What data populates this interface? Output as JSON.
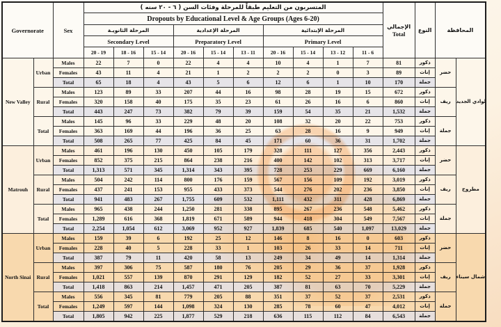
{
  "table": {
    "header": {
      "governorate_en": "Governorate",
      "sex_en": "Sex",
      "title_ar": "المتسربون من التعليم طبقاً للمرحلة وفئات السن ( ٦ - ٢٠ سنه )",
      "title_en": "Dropouts by Educational Level & Age Groups (Ages 6-20)",
      "levels": [
        {
          "ar": "المرحلة الثانويـة",
          "en": "Secondary Level",
          "ages": [
            "20 - 19",
            "18 - 16",
            "15 - 14"
          ]
        },
        {
          "ar": "المرحلة الإعدادية",
          "en": "Preparatory Level",
          "ages": [
            "20 - 16",
            "15 - 14",
            "13 - 11"
          ]
        },
        {
          "ar": "المرحلة الإبتدائية",
          "en": "Primary Level",
          "ages": [
            "20 - 16",
            "15 - 14",
            "13 - 12",
            "11 - 6"
          ]
        }
      ],
      "total_ar": "الإجمالي",
      "total_en": "Total",
      "type_ar": "النوع",
      "governorate_ar": "المحافظة"
    },
    "colors": {
      "row_light_new_valley": "#fdf6ea",
      "row_light_matrouh": "#fcefdd",
      "row_light_north_sinai": "#f8d9ae",
      "row_total_gray": "#e6e4e8",
      "border": "#2e2e2e",
      "watermark_orange": "#f0994a"
    },
    "sections": [
      {
        "id": "nv",
        "governorate_en": "New Valley",
        "governorate_ar": "الوادي الجديد",
        "groups": [
          {
            "residence_en": "Urban",
            "residence_ar": "حضر",
            "rows": [
              {
                "kind": "males",
                "sex_en": "Males",
                "sex_ar": "ذكور",
                "values": [
                  "22",
                  "7",
                  "0",
                  "22",
                  "4",
                  "4",
                  "10",
                  "4",
                  "1",
                  "7"
                ],
                "total": "81"
              },
              {
                "kind": "females",
                "sex_en": "Females",
                "sex_ar": "إناث",
                "values": [
                  "43",
                  "11",
                  "4",
                  "21",
                  "1",
                  "2",
                  "2",
                  "2",
                  "0",
                  "3"
                ],
                "total": "89"
              },
              {
                "kind": "total",
                "sex_en": "Total",
                "sex_ar": "جملة",
                "values": [
                  "65",
                  "18",
                  "4",
                  "43",
                  "5",
                  "6",
                  "12",
                  "6",
                  "1",
                  "10"
                ],
                "total": "170"
              }
            ]
          },
          {
            "residence_en": "Rural",
            "residence_ar": "ريف",
            "rows": [
              {
                "kind": "males",
                "sex_en": "Males",
                "sex_ar": "ذكور",
                "values": [
                  "123",
                  "89",
                  "33",
                  "207",
                  "44",
                  "16",
                  "98",
                  "28",
                  "19",
                  "15"
                ],
                "total": "672"
              },
              {
                "kind": "females",
                "sex_en": "Females",
                "sex_ar": "إناث",
                "values": [
                  "320",
                  "158",
                  "40",
                  "175",
                  "35",
                  "23",
                  "61",
                  "26",
                  "16",
                  "6"
                ],
                "total": "860"
              },
              {
                "kind": "total",
                "sex_en": "Total",
                "sex_ar": "جملة",
                "values": [
                  "443",
                  "247",
                  "73",
                  "382",
                  "79",
                  "39",
                  "159",
                  "54",
                  "35",
                  "21"
                ],
                "total": "1,532"
              }
            ]
          },
          {
            "residence_en": "Total",
            "residence_ar": "جملة",
            "rows": [
              {
                "kind": "males",
                "sex_en": "Males",
                "sex_ar": "ذكور",
                "values": [
                  "145",
                  "96",
                  "33",
                  "229",
                  "48",
                  "20",
                  "108",
                  "32",
                  "20",
                  "22"
                ],
                "total": "753"
              },
              {
                "kind": "females",
                "sex_en": "Females",
                "sex_ar": "إناث",
                "values": [
                  "363",
                  "169",
                  "44",
                  "196",
                  "36",
                  "25",
                  "63",
                  "28",
                  "16",
                  "9"
                ],
                "total": "949"
              },
              {
                "kind": "total",
                "sex_en": "Total",
                "sex_ar": "جملة",
                "values": [
                  "508",
                  "265",
                  "77",
                  "425",
                  "84",
                  "45",
                  "171",
                  "60",
                  "36",
                  "31"
                ],
                "total": "1,702"
              }
            ]
          }
        ]
      },
      {
        "id": "mt",
        "governorate_en": "Matrouh",
        "governorate_ar": "مطروح",
        "groups": [
          {
            "residence_en": "Urban",
            "residence_ar": "حضر",
            "rows": [
              {
                "kind": "males",
                "sex_en": "Males",
                "sex_ar": "ذكور",
                "values": [
                  "461",
                  "196",
                  "130",
                  "450",
                  "105",
                  "179",
                  "328",
                  "111",
                  "127",
                  "356"
                ],
                "total": "2,443"
              },
              {
                "kind": "females",
                "sex_en": "Females",
                "sex_ar": "إناث",
                "values": [
                  "852",
                  "375",
                  "215",
                  "864",
                  "238",
                  "216",
                  "400",
                  "142",
                  "102",
                  "313"
                ],
                "total": "3,717"
              },
              {
                "kind": "total",
                "sex_en": "Total",
                "sex_ar": "جملة",
                "values": [
                  "1,313",
                  "571",
                  "345",
                  "1,314",
                  "343",
                  "395",
                  "728",
                  "253",
                  "229",
                  "669"
                ],
                "total": "6,160"
              }
            ]
          },
          {
            "residence_en": "Rural",
            "residence_ar": "ريف",
            "rows": [
              {
                "kind": "males",
                "sex_en": "Males",
                "sex_ar": "ذكور",
                "values": [
                  "504",
                  "242",
                  "114",
                  "800",
                  "176",
                  "159",
                  "567",
                  "156",
                  "109",
                  "192"
                ],
                "total": "3,019"
              },
              {
                "kind": "females",
                "sex_en": "Females",
                "sex_ar": "إناث",
                "values": [
                  "437",
                  "241",
                  "153",
                  "955",
                  "433",
                  "373",
                  "544",
                  "276",
                  "202",
                  "236"
                ],
                "total": "3,850"
              },
              {
                "kind": "total",
                "sex_en": "Total",
                "sex_ar": "جملة",
                "values": [
                  "941",
                  "483",
                  "267",
                  "1,755",
                  "609",
                  "532",
                  "1,111",
                  "432",
                  "311",
                  "428"
                ],
                "total": "6,869"
              }
            ]
          },
          {
            "residence_en": "Total",
            "residence_ar": "جملة",
            "rows": [
              {
                "kind": "males",
                "sex_en": "Males",
                "sex_ar": "ذكور",
                "values": [
                  "965",
                  "438",
                  "244",
                  "1,250",
                  "281",
                  "338",
                  "895",
                  "267",
                  "236",
                  "548"
                ],
                "total": "5,462"
              },
              {
                "kind": "females",
                "sex_en": "Females",
                "sex_ar": "إناث",
                "values": [
                  "1,289",
                  "616",
                  "368",
                  "1,819",
                  "671",
                  "589",
                  "944",
                  "418",
                  "304",
                  "549"
                ],
                "total": "7,567"
              },
              {
                "kind": "total",
                "sex_en": "Total",
                "sex_ar": "جملة",
                "values": [
                  "2,254",
                  "1,054",
                  "612",
                  "3,069",
                  "952",
                  "927",
                  "1,839",
                  "685",
                  "540",
                  "1,097"
                ],
                "total": "13,029"
              }
            ]
          }
        ]
      },
      {
        "id": "ns",
        "governorate_en": "North Sinai",
        "governorate_ar": "شمال سيناء",
        "groups": [
          {
            "residence_en": "Urban",
            "residence_ar": "حضر",
            "rows": [
              {
                "kind": "males",
                "sex_en": "Males",
                "sex_ar": "ذكور",
                "values": [
                  "159",
                  "39",
                  "6",
                  "192",
                  "25",
                  "12",
                  "146",
                  "8",
                  "16",
                  "0"
                ],
                "total": "603"
              },
              {
                "kind": "females",
                "sex_en": "Females",
                "sex_ar": "إناث",
                "values": [
                  "228",
                  "40",
                  "5",
                  "228",
                  "33",
                  "1",
                  "103",
                  "26",
                  "33",
                  "14"
                ],
                "total": "711"
              },
              {
                "kind": "total",
                "sex_en": "Total",
                "sex_ar": "جملة",
                "values": [
                  "387",
                  "79",
                  "11",
                  "420",
                  "58",
                  "13",
                  "249",
                  "34",
                  "49",
                  "14"
                ],
                "total": "1,314"
              }
            ]
          },
          {
            "residence_en": "Rural",
            "residence_ar": "ريف",
            "rows": [
              {
                "kind": "males",
                "sex_en": "Males",
                "sex_ar": "ذكور",
                "values": [
                  "397",
                  "306",
                  "75",
                  "587",
                  "180",
                  "76",
                  "205",
                  "29",
                  "36",
                  "37"
                ],
                "total": "1,928"
              },
              {
                "kind": "females",
                "sex_en": "Females",
                "sex_ar": "إناث",
                "values": [
                  "1,021",
                  "557",
                  "139",
                  "870",
                  "291",
                  "129",
                  "182",
                  "52",
                  "27",
                  "33"
                ],
                "total": "3,301"
              },
              {
                "kind": "total",
                "sex_en": "Total",
                "sex_ar": "جملة",
                "values": [
                  "1,418",
                  "863",
                  "214",
                  "1,457",
                  "471",
                  "205",
                  "387",
                  "81",
                  "63",
                  "70"
                ],
                "total": "5,229"
              }
            ]
          },
          {
            "residence_en": "Total",
            "residence_ar": "جملة",
            "rows": [
              {
                "kind": "males",
                "sex_en": "Males",
                "sex_ar": "ذكور",
                "values": [
                  "556",
                  "345",
                  "81",
                  "779",
                  "205",
                  "88",
                  "351",
                  "37",
                  "52",
                  "37"
                ],
                "total": "2,531"
              },
              {
                "kind": "females",
                "sex_en": "Females",
                "sex_ar": "إناث",
                "values": [
                  "1,249",
                  "597",
                  "144",
                  "1,098",
                  "324",
                  "130",
                  "285",
                  "78",
                  "60",
                  "47"
                ],
                "total": "4,012"
              },
              {
                "kind": "total",
                "sex_en": "Total",
                "sex_ar": "جملة",
                "values": [
                  "1,805",
                  "942",
                  "225",
                  "1,877",
                  "529",
                  "218",
                  "636",
                  "115",
                  "112",
                  "84"
                ],
                "total": "6,543"
              }
            ]
          }
        ]
      }
    ]
  }
}
